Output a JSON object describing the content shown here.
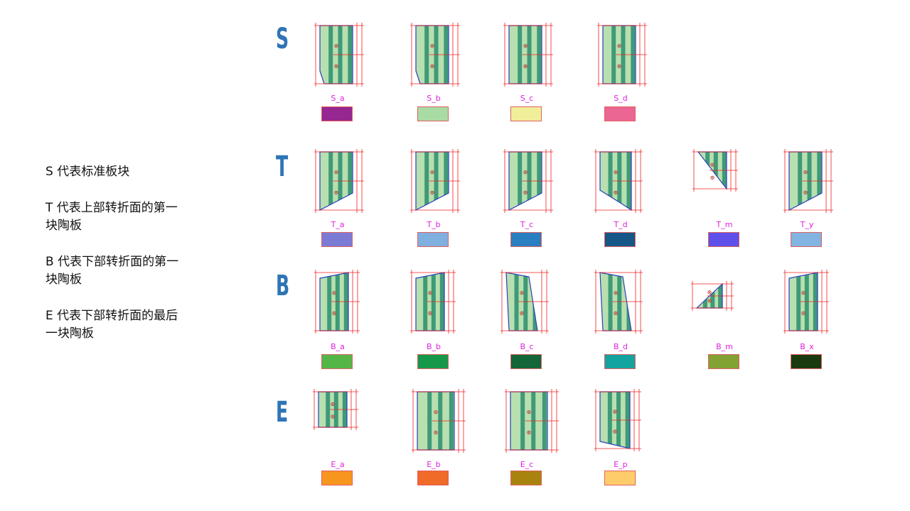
{
  "legend": [
    "S  代表标准板块",
    "T  代表上部转折面的第一\n块陶板",
    "B  代表下部转折面的第一\n块陶板",
    "E  代表下部转折面的最后\n一块陶板"
  ],
  "rows": [
    {
      "letter": "S",
      "items": [
        {
          "label": "S_a",
          "color": "#962690",
          "shape": "rect-slant"
        },
        {
          "label": "S_b",
          "color": "#a9dba5",
          "shape": "rect-slant"
        },
        {
          "label": "S_c",
          "color": "#f1ee9a",
          "shape": "rect"
        },
        {
          "label": "S_d",
          "color": "#ec6694",
          "shape": "rect"
        }
      ]
    },
    {
      "letter": "T",
      "items": [
        {
          "label": "T_a",
          "color": "#7b7bd6",
          "shape": "t-left"
        },
        {
          "label": "T_b",
          "color": "#7fb0e0",
          "shape": "t-left"
        },
        {
          "label": "T_c",
          "color": "#2a7fc0",
          "shape": "t-left"
        },
        {
          "label": "T_d",
          "color": "#155888",
          "shape": "t-right"
        },
        {
          "label": "T_m",
          "color": "#6050ea",
          "shape": "tri-down"
        },
        {
          "label": "T_y",
          "color": "#82b4e2",
          "shape": "t-left"
        }
      ]
    },
    {
      "letter": "B",
      "items": [
        {
          "label": "B_a",
          "color": "#55b648",
          "shape": "b-right"
        },
        {
          "label": "B_b",
          "color": "#16984a",
          "shape": "b-right"
        },
        {
          "label": "B_c",
          "color": "#136638",
          "shape": "b-left"
        },
        {
          "label": "B_d",
          "color": "#14a4a0",
          "shape": "b-left"
        },
        {
          "label": "B_m",
          "color": "#82a234",
          "shape": "tri-up"
        },
        {
          "label": "B_x",
          "color": "#1a3b10",
          "shape": "b-right"
        }
      ]
    },
    {
      "letter": "E",
      "items": [
        {
          "label": "E_a",
          "color": "#f7961e",
          "shape": "e-small"
        },
        {
          "label": "E_b",
          "color": "#f06a28",
          "shape": "e-tall"
        },
        {
          "label": "E_c",
          "color": "#a8840e",
          "shape": "e-tall"
        },
        {
          "label": "E_p",
          "color": "#fecc6a",
          "shape": "e-slant"
        }
      ]
    }
  ]
}
